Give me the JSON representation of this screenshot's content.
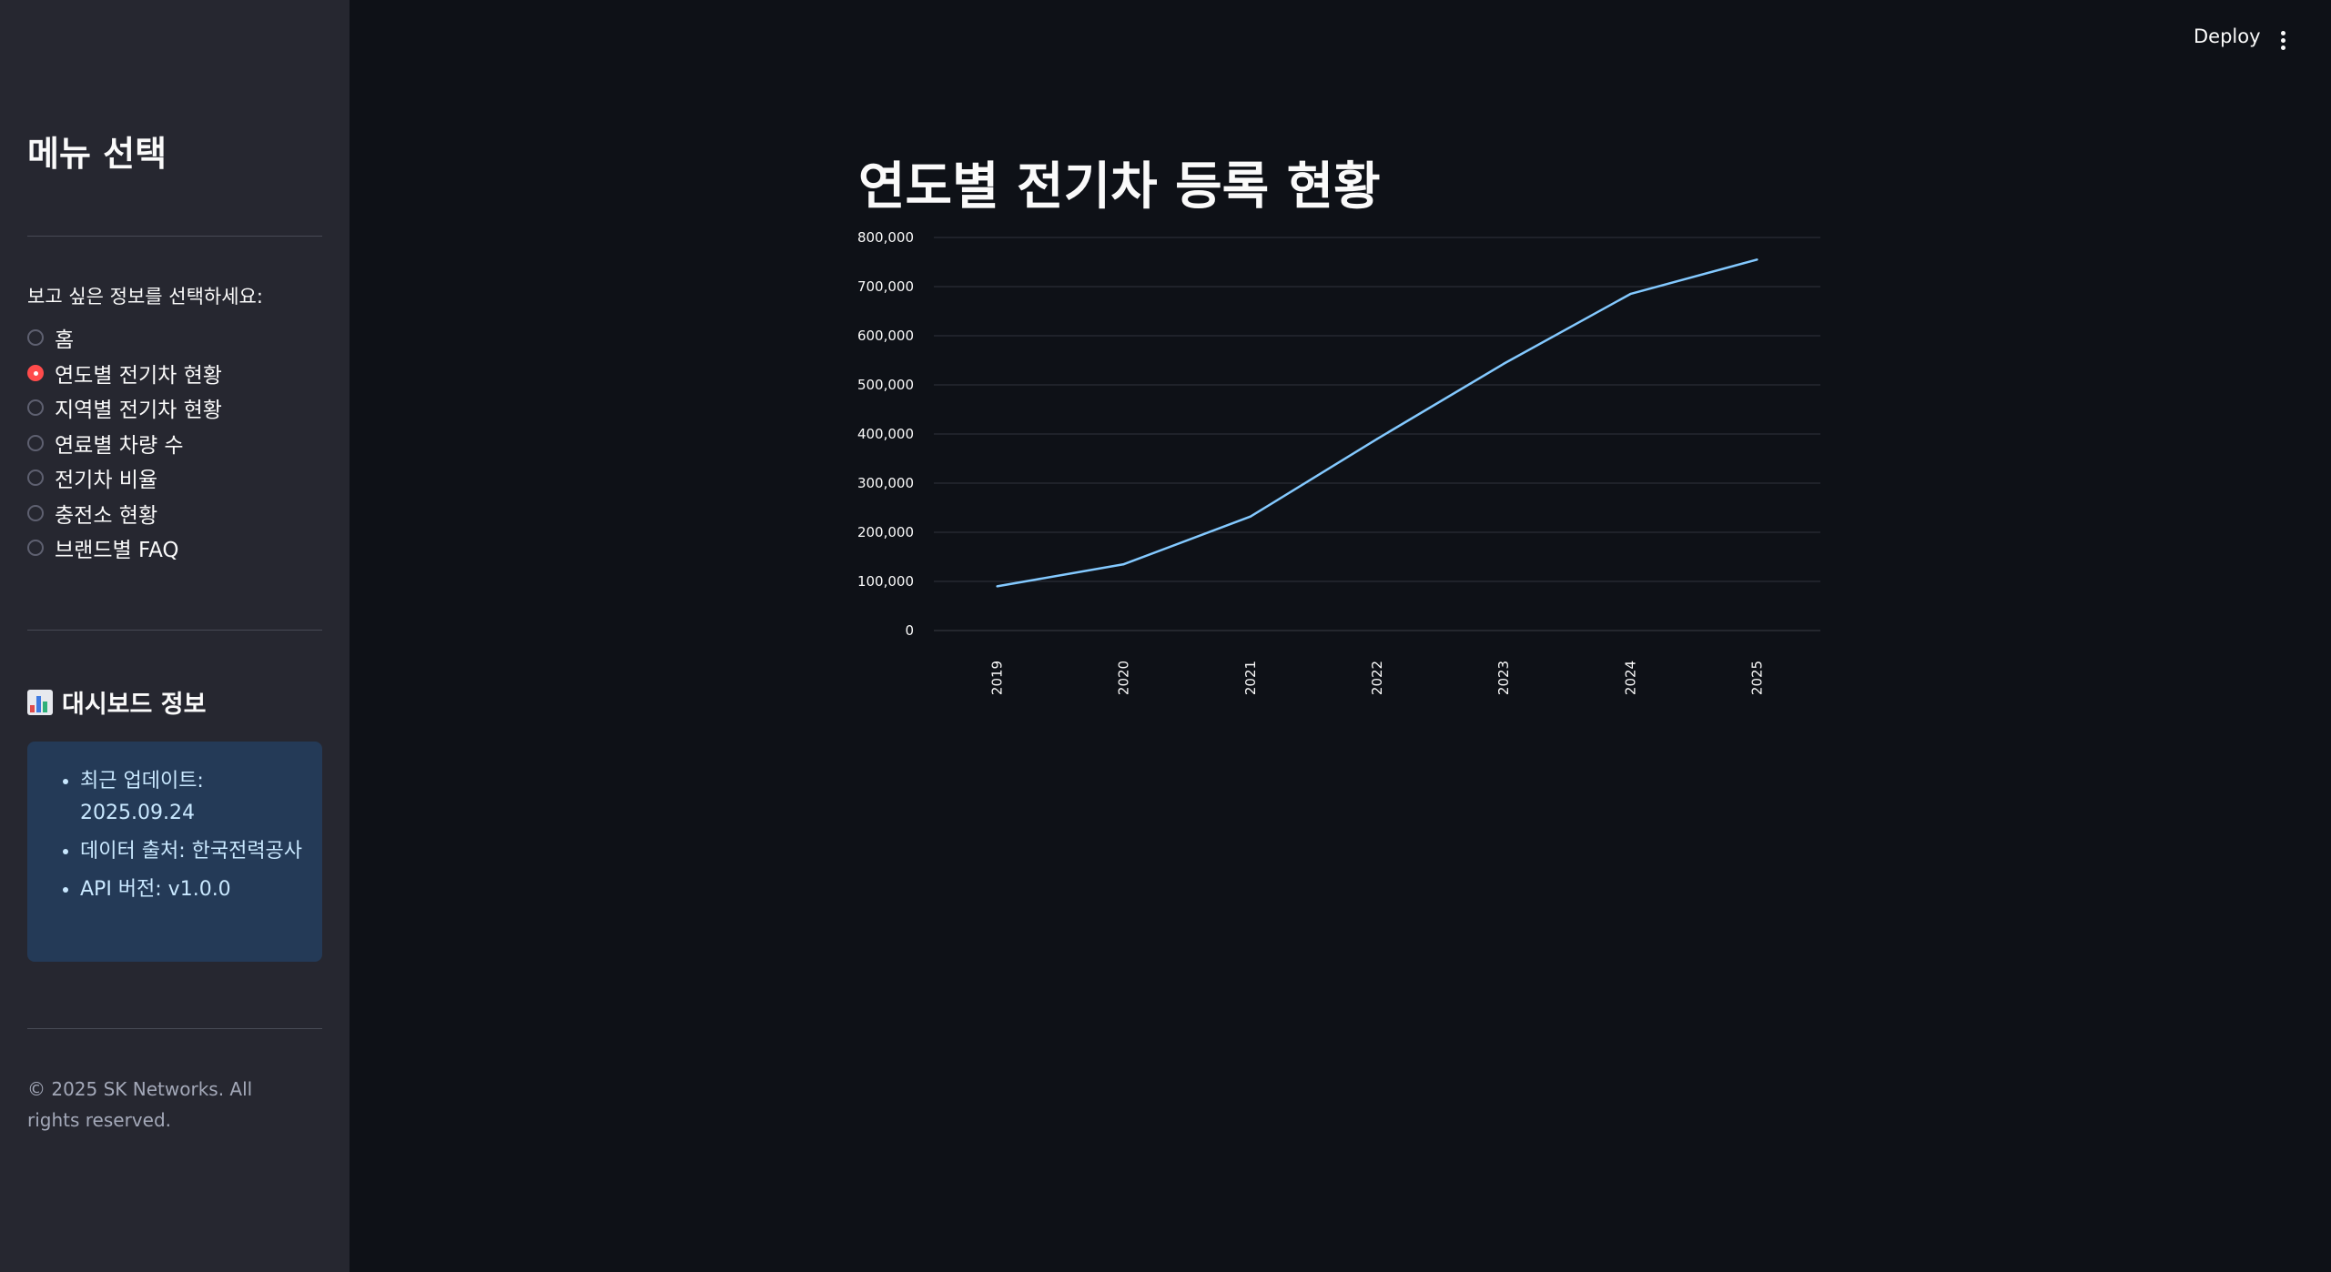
{
  "header": {
    "deploy_label": "Deploy",
    "menu_icon": "more-vertical-icon"
  },
  "sidebar": {
    "title": "메뉴 선택",
    "radio_prompt": "보고 싶은 정보를 선택하세요:",
    "options": [
      {
        "label": "홈",
        "selected": false
      },
      {
        "label": "연도별 전기차 현황",
        "selected": true
      },
      {
        "label": "지역별 전기차 현황",
        "selected": false
      },
      {
        "label": "연료별 차량 수",
        "selected": false
      },
      {
        "label": "전기차 비율",
        "selected": false
      },
      {
        "label": "충전소 현황",
        "selected": false
      },
      {
        "label": "브랜드별 FAQ",
        "selected": false
      }
    ],
    "info_heading": "대시보드 정보",
    "info_heading_icon": "bar-chart-emoji-icon",
    "info_items": [
      "최근 업데이트: 2025.09.24",
      "데이터 출처: 한국전력공사",
      "API 버전: v1.0.0"
    ],
    "footer": "© 2025 SK Networks. All rights reserved."
  },
  "main": {
    "title": "연도별 전기차 등록 현황"
  },
  "colors": {
    "background": "#0e1117",
    "sidebar": "#262730",
    "accent": "#ff4b4b",
    "line": "#83c9ff",
    "info_box": "#243a57"
  },
  "chart_data": {
    "type": "line",
    "x": [
      "2019",
      "2020",
      "2021",
      "2022",
      "2023",
      "2024",
      "2025"
    ],
    "series": [
      {
        "values": [
          90000,
          135000,
          232000,
          390000,
          543000,
          685000,
          755000
        ]
      }
    ],
    "ylim": [
      0,
      800000
    ],
    "yticks": [
      0,
      100000,
      200000,
      300000,
      400000,
      500000,
      600000,
      700000,
      800000
    ],
    "ytick_labels": [
      "0",
      "100,000",
      "200,000",
      "300,000",
      "400,000",
      "500,000",
      "600,000",
      "700,000",
      "800,000"
    ],
    "grid": true,
    "legend": "none"
  }
}
